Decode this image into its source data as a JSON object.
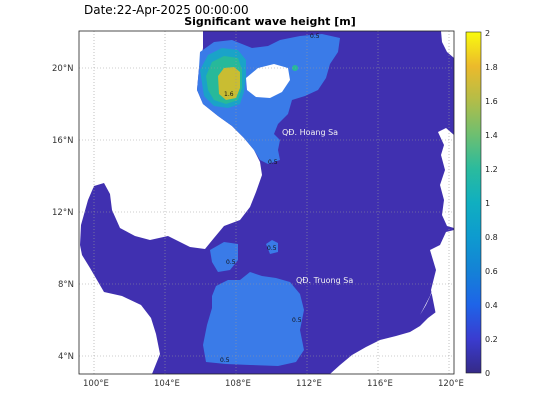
{
  "header": {
    "date_text": "Date:22-Apr-2025 00:00:00",
    "title": "Significant wave height [m]"
  },
  "map": {
    "lon_ticks": [
      "100°E",
      "104°E",
      "108°E",
      "112°E",
      "116°E",
      "120°E"
    ],
    "lat_ticks": [
      "4°N",
      "8°N",
      "12°N",
      "16°N",
      "20°N"
    ],
    "lon_range": [
      99.3,
      120.3
    ],
    "lat_range": [
      3.2,
      22.0
    ],
    "place_labels": [
      "QĐ. Hoang Sa",
      "QĐ. Truong Sa"
    ],
    "contour_labels": [
      "1.6",
      "0.5",
      "0.5",
      "0.5",
      "0.5",
      "0.5",
      "0.5"
    ],
    "grid": true
  },
  "colorbar": {
    "ticks": [
      "0",
      "0.2",
      "0.4",
      "0.6",
      "0.8",
      "1",
      "1.2",
      "1.4",
      "1.6",
      "1.8",
      "2"
    ],
    "min": 0,
    "max": 2,
    "colormap": "parula"
  },
  "colors": {
    "sea_low": "#4030b0",
    "sea_mid": "#3a7be8",
    "band_08": "#1aa3c8",
    "band_12": "#27b99a",
    "band_16": "#c9bd32",
    "land": "#ffffff"
  }
}
